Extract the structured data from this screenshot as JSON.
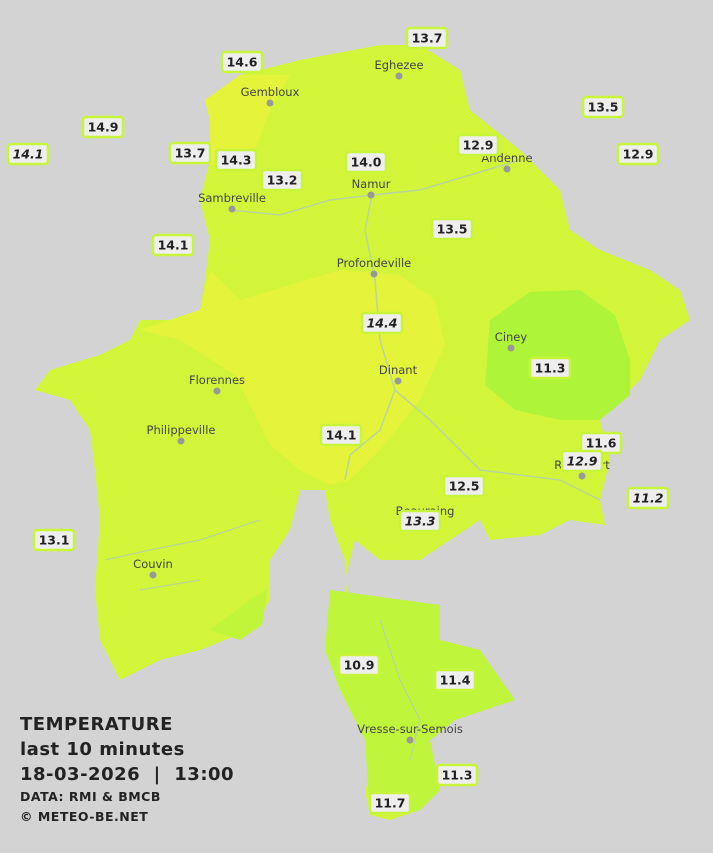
{
  "legend": {
    "title": "TEMPERATURE",
    "period": "last 10 minutes",
    "datetime": "18-03-2026  |  13:00",
    "source": "DATA: RMI & BMCB",
    "copyright": "© METEO-BE.NET"
  },
  "cities": [
    "Eghezee",
    "Gembloux",
    "Andenne",
    "Namur",
    "Sambreville",
    "Profondeville",
    "Ciney",
    "Dinant",
    "Florennes",
    "Philippeville",
    "Rochefort",
    "Beauraing",
    "Couvin",
    "Vresse-sur-Semois"
  ],
  "stations": [
    {
      "label": "13.7",
      "italic": false
    },
    {
      "label": "14.6",
      "italic": false
    },
    {
      "label": "13.5",
      "italic": false
    },
    {
      "label": "14.9",
      "italic": false
    },
    {
      "label": "12.9",
      "italic": false
    },
    {
      "label": "12.9",
      "italic": false
    },
    {
      "label": "14.1",
      "italic": true
    },
    {
      "label": "13.7",
      "italic": false
    },
    {
      "label": "14.3",
      "italic": false
    },
    {
      "label": "14.0",
      "italic": false
    },
    {
      "label": "13.2",
      "italic": false
    },
    {
      "label": "13.5",
      "italic": false
    },
    {
      "label": "14.1",
      "italic": false
    },
    {
      "label": "14.4",
      "italic": true
    },
    {
      "label": "11.3",
      "italic": false
    },
    {
      "label": "14.1",
      "italic": false
    },
    {
      "label": "11.6",
      "italic": false
    },
    {
      "label": "12.9",
      "italic": true
    },
    {
      "label": "11.2",
      "italic": true
    },
    {
      "label": "12.5",
      "italic": false
    },
    {
      "label": "13.3",
      "italic": true
    },
    {
      "label": "13.1",
      "italic": false
    },
    {
      "label": "10.9",
      "italic": false
    },
    {
      "label": "11.4",
      "italic": false
    },
    {
      "label": "11.3",
      "italic": false
    },
    {
      "label": "11.7",
      "italic": false
    }
  ]
}
